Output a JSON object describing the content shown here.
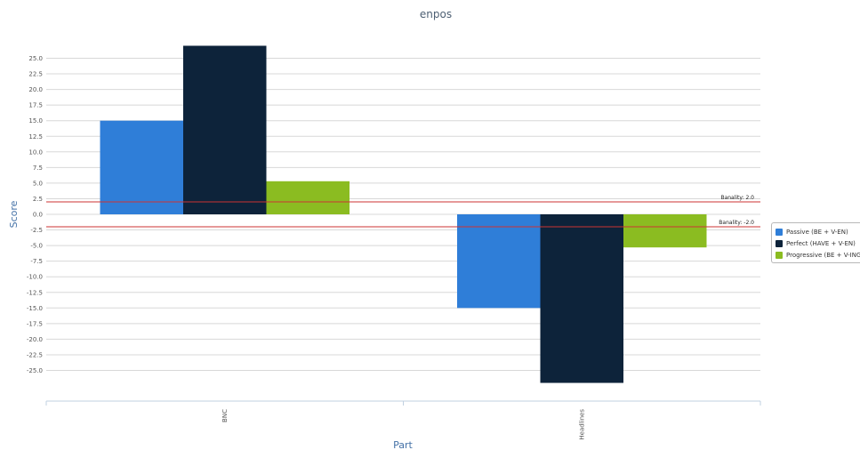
{
  "chart_data": {
    "type": "bar",
    "title": "enpos",
    "xlabel": "Part",
    "ylabel": "Score",
    "categories": [
      "BNC",
      "Headlines"
    ],
    "series": [
      {
        "name": "Passive (BE + V-EN)",
        "values": [
          15.0,
          -15.0
        ],
        "color": "#2f7ed8"
      },
      {
        "name": "Perfect (HAVE + V-EN)",
        "values": [
          27.0,
          -27.0
        ],
        "color": "#0d233a"
      },
      {
        "name": "Progressive (BE + V-ING)",
        "values": [
          5.3,
          -5.3
        ],
        "color": "#8bbc21"
      }
    ],
    "ylim": [
      -30,
      30
    ],
    "yticks": [
      "25.0",
      "22.5",
      "20.0",
      "17.5",
      "15.0",
      "12.5",
      "10.0",
      "7.5",
      "5.0",
      "2.5",
      "0.0",
      "-2.5",
      "-5.0",
      "-7.5",
      "-10.0",
      "-12.5",
      "-15.0",
      "-17.5",
      "-20.0",
      "-22.5",
      "-25.0"
    ],
    "grid": true,
    "legend_position": "right",
    "reference_lines": [
      {
        "value": 2.0,
        "label": "Banality: 2.0",
        "color": "#cc3333"
      },
      {
        "value": -2.0,
        "label": "Banality: -2.0",
        "color": "#cc3333"
      }
    ]
  }
}
